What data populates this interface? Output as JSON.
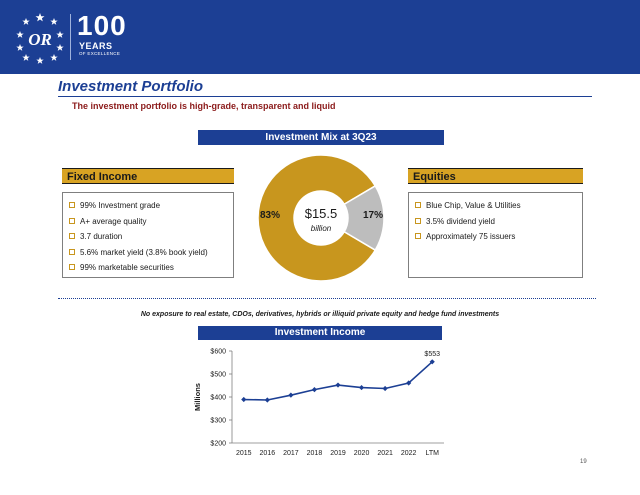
{
  "header": {
    "logo_monogram": "OR",
    "anniversary_number": "100",
    "anniversary_line1": "YEARS",
    "anniversary_line2": "OF EXCELLENCE"
  },
  "title": "Investment Portfolio",
  "subtitle": "The investment portfolio is high-grade, transparent and liquid",
  "mix": {
    "header": "Investment Mix at 3Q23",
    "center_value": "$15.5",
    "center_unit": "billion"
  },
  "fixed_income": {
    "label": "Fixed Income",
    "bullets": [
      "99% Investment grade",
      "A+ average quality",
      "3.7 duration",
      "5.6% market yield (3.8% book yield)",
      "99% marketable securities"
    ]
  },
  "equities": {
    "label": "Equities",
    "bullets": [
      "Blue Chip, Value & Utilities",
      "3.5% dividend yield",
      "Approximately 75 issuers"
    ]
  },
  "disclaimer": "No exposure to real estate, CDOs, derivatives, hybrids or illiquid private equity and hedge fund investments",
  "income": {
    "header": "Investment Income"
  },
  "page_number": "19",
  "colors": {
    "brand_blue": "#1c3f94",
    "fixed_income_gold": "#c8961e",
    "equities_gray": "#bdbdbd",
    "subtitle_red": "#8b1a1a"
  },
  "chart_data": [
    {
      "type": "pie",
      "donut": true,
      "slices": [
        {
          "name": "Fixed Income",
          "value": 83,
          "label": "83%"
        },
        {
          "name": "Equities",
          "value": 17,
          "label": "17%"
        }
      ]
    },
    {
      "type": "line",
      "title": "Investment Income",
      "ylabel": "Millions",
      "xlabel": "",
      "categories": [
        "2015",
        "2016",
        "2017",
        "2018",
        "2019",
        "2020",
        "2021",
        "2022",
        "LTM"
      ],
      "series": [
        {
          "values": [
            389,
            387,
            408,
            432,
            452,
            441,
            437,
            461,
            553
          ]
        }
      ],
      "ylim": [
        200,
        600
      ],
      "yticks": [
        200,
        300,
        400,
        500,
        600
      ],
      "ytick_labels": [
        "$200",
        "$300",
        "$400",
        "$500",
        "$600"
      ],
      "annotations": [
        {
          "category": "LTM",
          "text": "$553"
        }
      ],
      "grid": false,
      "legend": "none"
    }
  ]
}
